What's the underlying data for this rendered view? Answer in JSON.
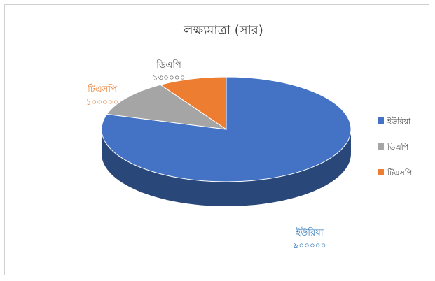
{
  "chart_data": {
    "type": "pie",
    "title": "লক্ষ্যমাত্রা (সার)",
    "three_d": true,
    "slices": [
      {
        "label": "ইউরিয়া",
        "value": 900000,
        "value_text": "৯০০০০০",
        "color": "#4472C4"
      },
      {
        "label": "ডিএপি",
        "value": 130000,
        "value_text": "১৩০০০০",
        "color": "#A5A5A5"
      },
      {
        "label": "টিএসপি",
        "value": 100000,
        "value_text": "১০০০০০",
        "color": "#ED7D31"
      }
    ],
    "legend_position": "right",
    "label_colors": {
      "ইউরিয়া": "#2E75B6",
      "ডিএপি": "#595959",
      "টিএসপি": "#ED7D31"
    }
  }
}
